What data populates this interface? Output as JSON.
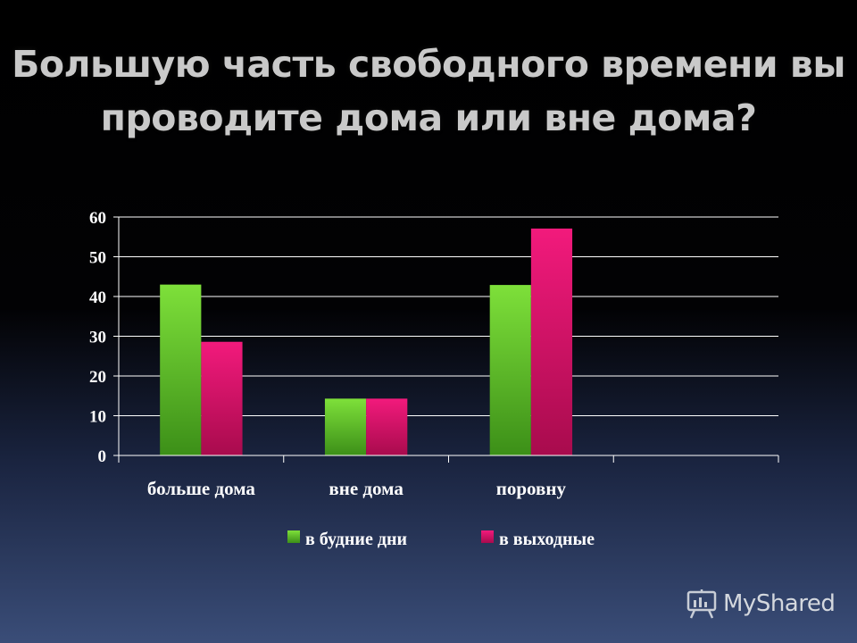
{
  "title_lines": [
    "Большую часть свободного времени вы",
    "проводите дома или вне дома?"
  ],
  "chart_data": {
    "type": "bar",
    "categories": [
      "больше дома",
      "вне дома",
      "поровну",
      ""
    ],
    "series": [
      {
        "name": "в будние дни",
        "values": [
          43,
          14.3,
          42.9,
          null
        ],
        "color": "#59c21e"
      },
      {
        "name": "в выходные",
        "values": [
          28.6,
          14.3,
          57.1,
          null
        ],
        "color": "#e0156e"
      }
    ],
    "ylim": [
      0,
      60
    ],
    "yticks": [
      0,
      10,
      20,
      30,
      40,
      50,
      60
    ],
    "grid": true,
    "legend": "bottom"
  },
  "logo": {
    "text": "MyShared",
    "icon": "presentation-board-icon"
  }
}
